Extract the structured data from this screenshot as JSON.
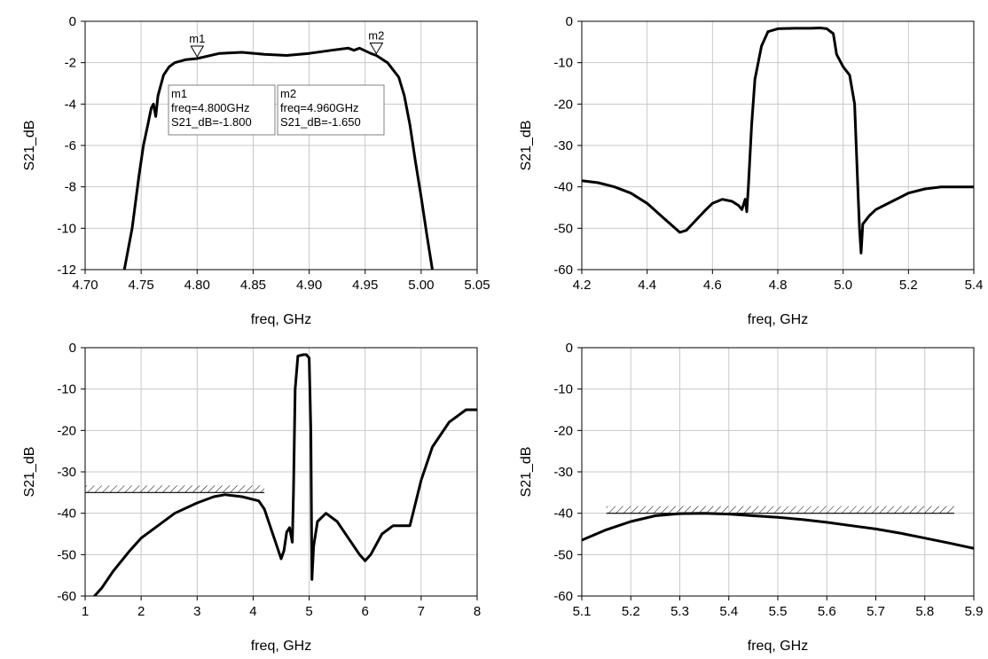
{
  "chart_data": [
    {
      "type": "line",
      "xlabel": "freq, GHz",
      "ylabel": "S21_dB",
      "xlim": [
        4.7,
        5.05
      ],
      "ylim": [
        -12,
        0
      ],
      "xticks": [
        "4.70",
        "4.75",
        "4.80",
        "4.85",
        "4.90",
        "4.95",
        "5.00",
        "5.05"
      ],
      "yticks": [
        "0",
        "-2",
        "-4",
        "-6",
        "-8",
        "-10",
        "-12"
      ],
      "grid": true,
      "series": [
        {
          "x": [
            4.735,
            4.742,
            4.748,
            4.752,
            4.756,
            4.759,
            4.761,
            4.763,
            4.765,
            4.77,
            4.775,
            4.78,
            4.79,
            4.8,
            4.82,
            4.84,
            4.86,
            4.88,
            4.9,
            4.92,
            4.935,
            4.94,
            4.945,
            4.955,
            4.96,
            4.97,
            4.98,
            4.985,
            4.99,
            4.995,
            5.0,
            5.005,
            5.01
          ],
          "y": [
            -12,
            -10,
            -7.5,
            -6,
            -5,
            -4.2,
            -4.0,
            -4.6,
            -3.6,
            -2.6,
            -2.2,
            -2.0,
            -1.85,
            -1.8,
            -1.55,
            -1.5,
            -1.6,
            -1.65,
            -1.55,
            -1.4,
            -1.3,
            -1.4,
            -1.3,
            -1.55,
            -1.65,
            -2.0,
            -2.7,
            -3.6,
            -5.0,
            -6.8,
            -8.5,
            -10.3,
            -12
          ]
        }
      ],
      "markers": [
        {
          "id": "m1",
          "x": 4.8,
          "y": -1.8,
          "lines": [
            "m1",
            "freq=4.800GHz",
            "S21_dB=-1.800"
          ]
        },
        {
          "id": "m2",
          "x": 4.96,
          "y": -1.65,
          "lines": [
            "m2",
            "freq=4.960GHz",
            "S21_dB=-1.650"
          ]
        }
      ]
    },
    {
      "type": "line",
      "xlabel": "freq, GHz",
      "ylabel": "S21_dB",
      "xlim": [
        4.2,
        5.4
      ],
      "ylim": [
        -60,
        0
      ],
      "xticks": [
        "4.2",
        "4.4",
        "4.6",
        "4.8",
        "5.0",
        "5.2",
        "5.4"
      ],
      "yticks": [
        "0",
        "-10",
        "-20",
        "-30",
        "-40",
        "-50",
        "-60"
      ],
      "grid": true,
      "series": [
        {
          "x": [
            4.2,
            4.25,
            4.3,
            4.35,
            4.4,
            4.45,
            4.5,
            4.52,
            4.55,
            4.58,
            4.6,
            4.63,
            4.66,
            4.68,
            4.69,
            4.7,
            4.705,
            4.71,
            4.72,
            4.73,
            4.75,
            4.77,
            4.8,
            4.85,
            4.9,
            4.93,
            4.95,
            4.97,
            4.98,
            5.0,
            5.02,
            5.035,
            5.04,
            5.045,
            5.05,
            5.055,
            5.06,
            5.08,
            5.1,
            5.15,
            5.2,
            5.25,
            5.3,
            5.35,
            5.4
          ],
          "y": [
            -38.5,
            -39,
            -40,
            -41.5,
            -44,
            -47.5,
            -51,
            -50.5,
            -48,
            -45.5,
            -44,
            -43,
            -43.5,
            -44.5,
            -45.5,
            -43,
            -46,
            -40,
            -25,
            -14,
            -6,
            -2.5,
            -1.8,
            -1.7,
            -1.7,
            -1.6,
            -1.8,
            -3,
            -8,
            -11,
            -13,
            -20,
            -30,
            -40,
            -50,
            -56,
            -49,
            -47,
            -45.5,
            -43.5,
            -41.5,
            -40.5,
            -40,
            -40,
            -40
          ]
        }
      ]
    },
    {
      "type": "line",
      "xlabel": "freq, GHz",
      "ylabel": "S21_dB",
      "xlim": [
        1,
        8
      ],
      "ylim": [
        -60,
        0
      ],
      "xticks": [
        "1",
        "2",
        "3",
        "4",
        "5",
        "6",
        "7",
        "8"
      ],
      "yticks": [
        "0",
        "-10",
        "-20",
        "-30",
        "-40",
        "-50",
        "-60"
      ],
      "grid": true,
      "spec_line": {
        "x": [
          1,
          4.2
        ],
        "y": -35
      },
      "series": [
        {
          "x": [
            1.1,
            1.3,
            1.5,
            1.8,
            2.0,
            2.3,
            2.6,
            3.0,
            3.3,
            3.5,
            3.8,
            4.1,
            4.2,
            4.3,
            4.4,
            4.5,
            4.55,
            4.6,
            4.65,
            4.7,
            4.72,
            4.75,
            4.8,
            4.9,
            4.95,
            5.0,
            5.03,
            5.05,
            5.08,
            5.15,
            5.3,
            5.5,
            5.7,
            5.9,
            6.0,
            6.1,
            6.3,
            6.5,
            6.6,
            6.8,
            7.0,
            7.2,
            7.5,
            7.8,
            8.0
          ],
          "y": [
            -61,
            -58,
            -54,
            -49,
            -46,
            -43,
            -40,
            -37.5,
            -36,
            -35.5,
            -36,
            -37,
            -39,
            -43,
            -47,
            -51,
            -49,
            -44.5,
            -43.5,
            -47,
            -35,
            -10,
            -2,
            -1.7,
            -1.7,
            -2.5,
            -20,
            -56,
            -48,
            -42,
            -40,
            -42,
            -46,
            -50,
            -51.5,
            -50,
            -45,
            -43,
            -43,
            -43,
            -32,
            -24,
            -18,
            -15,
            -15
          ]
        }
      ]
    },
    {
      "type": "line",
      "xlabel": "freq, GHz",
      "ylabel": "S21_dB",
      "xlim": [
        5.1,
        5.9
      ],
      "ylim": [
        -60,
        0
      ],
      "xticks": [
        "5.1",
        "5.2",
        "5.3",
        "5.4",
        "5.5",
        "5.6",
        "5.7",
        "5.8",
        "5.9"
      ],
      "yticks": [
        "0",
        "-10",
        "-20",
        "-30",
        "-40",
        "-50",
        "-60"
      ],
      "grid": true,
      "spec_line": {
        "x": [
          5.15,
          5.86
        ],
        "y": -40
      },
      "series": [
        {
          "x": [
            5.1,
            5.15,
            5.2,
            5.25,
            5.3,
            5.35,
            5.4,
            5.45,
            5.5,
            5.55,
            5.6,
            5.65,
            5.7,
            5.75,
            5.8,
            5.85,
            5.9
          ],
          "y": [
            -46.5,
            -44,
            -42,
            -40.6,
            -40.1,
            -40,
            -40.2,
            -40.6,
            -41,
            -41.5,
            -42.2,
            -43,
            -43.8,
            -44.8,
            -46,
            -47.2,
            -48.5
          ]
        }
      ]
    }
  ]
}
